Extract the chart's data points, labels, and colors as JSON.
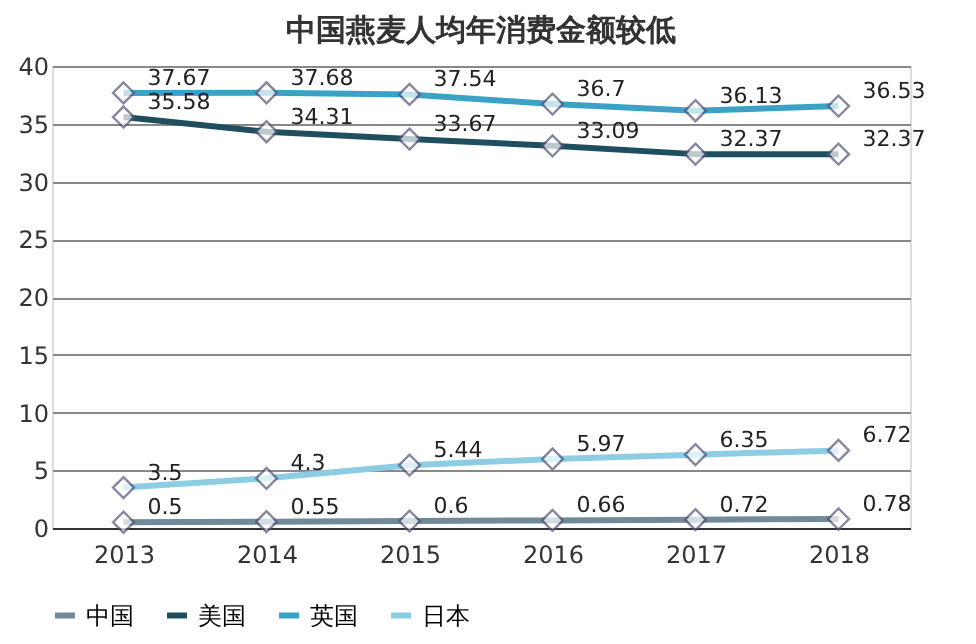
{
  "chart_data": {
    "type": "line",
    "title": "中国燕麦人均年消费金额较低",
    "categories": [
      "2013",
      "2014",
      "2015",
      "2016",
      "2017",
      "2018"
    ],
    "series": [
      {
        "name": "中国",
        "color": "#708a99",
        "values": [
          0.5,
          0.55,
          0.6,
          0.66,
          0.72,
          0.78
        ]
      },
      {
        "name": "美国",
        "color": "#1f4e5f",
        "values": [
          35.58,
          34.31,
          33.67,
          33.09,
          32.37,
          32.37
        ]
      },
      {
        "name": "英国",
        "color": "#3aa3c5",
        "values": [
          37.67,
          37.68,
          37.54,
          36.7,
          36.13,
          36.53
        ]
      },
      {
        "name": "日本",
        "color": "#8dcde3",
        "values": [
          3.5,
          4.3,
          5.44,
          5.97,
          6.35,
          6.72
        ]
      }
    ],
    "ylim": [
      0,
      40
    ],
    "yticks": [
      0,
      5,
      10,
      15,
      20,
      25,
      30,
      35,
      40
    ],
    "grid": "y",
    "legend": "bottom",
    "marker": "diamond",
    "line_style": "solid",
    "data_labels": true
  }
}
